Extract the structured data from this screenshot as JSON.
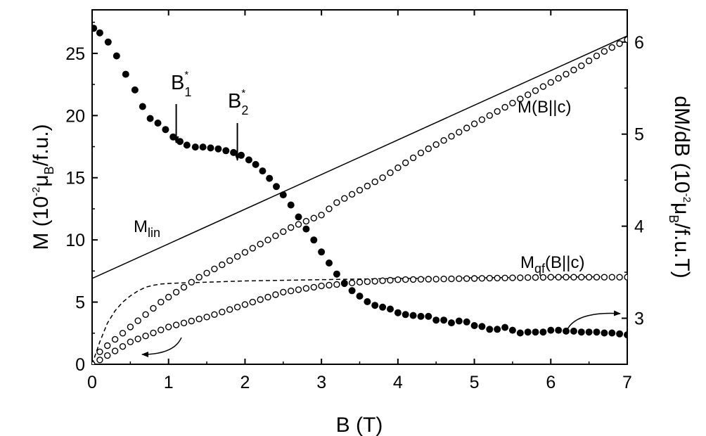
{
  "chart_data": {
    "type": "scatter",
    "x_axis": {
      "label_main": "B (T)",
      "min": 0,
      "max": 7,
      "ticks": [
        0,
        1,
        2,
        3,
        4,
        5,
        6,
        7
      ]
    },
    "y_left": {
      "label_main": "M (10",
      "label_exp": "-2",
      "label_mu": "μ",
      "label_sub": "B",
      "label_tail": "/f.u.)",
      "min": 0,
      "max": 28.5,
      "ticks": [
        0,
        5,
        10,
        15,
        20,
        25
      ]
    },
    "y_right": {
      "label_main": "dM/dB (10",
      "label_exp": "-2",
      "label_mu": "μ",
      "label_sub": "B",
      "label_tail": "/f.u.T)",
      "min": 2.5,
      "max": 6.35,
      "ticks": [
        3,
        4,
        5,
        6
      ]
    },
    "annotations": {
      "b1_main": "B",
      "b1_sub": "1",
      "b1_sup": "*",
      "b1_field": 1.1,
      "b2_main": "B",
      "b2_sub": "2",
      "b2_sup": "*",
      "b2_field": 1.9,
      "mlin_main": "M",
      "mlin_sub": "lin",
      "mbc_label": "M(B||c)",
      "mqf_main": "M",
      "mqf_sub": "qf",
      "mqf_tail": "(B||c)"
    },
    "series": [
      {
        "style": "line-solid",
        "axis": "left",
        "points": [
          [
            0,
            6.9
          ],
          [
            7,
            26.4
          ]
        ]
      },
      {
        "style": "line-dashed",
        "axis": "left",
        "points": [
          [
            0.0,
            0.0
          ],
          [
            0.1,
            1.8
          ],
          [
            0.2,
            3.3
          ],
          [
            0.3,
            4.3
          ],
          [
            0.4,
            5.0
          ],
          [
            0.5,
            5.5
          ],
          [
            0.6,
            5.9
          ],
          [
            0.7,
            6.2
          ],
          [
            0.8,
            6.35
          ],
          [
            0.9,
            6.45
          ],
          [
            1.0,
            6.5
          ],
          [
            1.2,
            6.55
          ],
          [
            1.5,
            6.6
          ],
          [
            2.0,
            6.7
          ],
          [
            3.0,
            6.8
          ],
          [
            4.0,
            6.9
          ],
          [
            5.0,
            6.95
          ],
          [
            6.0,
            7.0
          ],
          [
            7.0,
            7.05
          ]
        ]
      },
      {
        "style": "open-circles",
        "axis": "left",
        "x_start": 0.0,
        "x_end": 7.0,
        "step": 0.1,
        "points": [
          [
            0,
            0
          ],
          [
            0.1,
            1.0
          ],
          [
            0.3,
            2.0
          ],
          [
            0.5,
            3.0
          ],
          [
            0.7,
            4.0
          ],
          [
            0.9,
            5.0
          ],
          [
            1.15,
            6.0
          ],
          [
            1.4,
            7.0
          ],
          [
            1.7,
            8.0
          ],
          [
            2.0,
            9.0
          ],
          [
            2.3,
            10.0
          ],
          [
            2.6,
            11.0
          ],
          [
            3.0,
            12.0
          ],
          [
            3.2,
            13.0
          ],
          [
            3.5,
            14.0
          ],
          [
            3.8,
            15.0
          ],
          [
            4.05,
            16.0
          ],
          [
            4.3,
            17.0
          ],
          [
            4.6,
            18.0
          ],
          [
            4.9,
            19.0
          ],
          [
            5.2,
            20.0
          ],
          [
            5.5,
            21.0
          ],
          [
            5.8,
            22.0
          ],
          [
            6.1,
            23.0
          ],
          [
            6.4,
            24.0
          ],
          [
            6.65,
            25.0
          ],
          [
            7.0,
            26.1
          ]
        ]
      },
      {
        "style": "open-circles",
        "axis": "left",
        "x_start": 0.0,
        "x_end": 7.0,
        "step": 0.1,
        "points": [
          [
            0,
            0
          ],
          [
            0.2,
            0.7
          ],
          [
            0.5,
            1.8
          ],
          [
            1.0,
            3.0
          ],
          [
            1.5,
            3.8
          ],
          [
            2.0,
            4.8
          ],
          [
            2.5,
            5.8
          ],
          [
            3.0,
            6.3
          ],
          [
            3.5,
            6.6
          ],
          [
            4.0,
            6.8
          ],
          [
            5.0,
            6.9
          ],
          [
            6.0,
            7.0
          ],
          [
            7.0,
            7.0
          ]
        ]
      },
      {
        "style": "filled-circles",
        "axis": "right",
        "points": [
          [
            0.02,
            6.15
          ],
          [
            0.1,
            6.1
          ],
          [
            0.21,
            6.0
          ],
          [
            0.32,
            5.85
          ],
          [
            0.44,
            5.65
          ],
          [
            0.56,
            5.48
          ],
          [
            0.66,
            5.3
          ],
          [
            0.76,
            5.17
          ],
          [
            0.86,
            5.12
          ],
          [
            0.96,
            5.05
          ],
          [
            1.06,
            4.97
          ],
          [
            1.15,
            4.92
          ],
          [
            1.24,
            4.88
          ],
          [
            1.35,
            4.86
          ],
          [
            1.45,
            4.86
          ],
          [
            1.55,
            4.85
          ],
          [
            1.65,
            4.84
          ],
          [
            1.75,
            4.82
          ],
          [
            1.85,
            4.8
          ],
          [
            1.95,
            4.77
          ],
          [
            2.05,
            4.72
          ],
          [
            2.14,
            4.67
          ],
          [
            2.23,
            4.6
          ],
          [
            2.32,
            4.52
          ],
          [
            2.41,
            4.43
          ],
          [
            2.5,
            4.34
          ],
          [
            2.6,
            4.23
          ],
          [
            2.7,
            4.1
          ],
          [
            2.8,
            3.97
          ],
          [
            2.9,
            3.85
          ],
          [
            3.0,
            3.72
          ],
          [
            3.1,
            3.6
          ],
          [
            3.2,
            3.48
          ],
          [
            3.3,
            3.38
          ],
          [
            3.4,
            3.3
          ],
          [
            3.5,
            3.24
          ],
          [
            3.6,
            3.18
          ],
          [
            3.7,
            3.14
          ],
          [
            3.8,
            3.12
          ],
          [
            3.9,
            3.1
          ],
          [
            4.0,
            3.06
          ],
          [
            4.1,
            3.04
          ],
          [
            4.2,
            3.03
          ],
          [
            4.3,
            3.02
          ],
          [
            4.4,
            3.02
          ],
          [
            4.5,
            2.98
          ],
          [
            4.6,
            2.98
          ],
          [
            4.7,
            2.95
          ],
          [
            4.8,
            2.97
          ],
          [
            4.9,
            2.96
          ],
          [
            5.0,
            2.92
          ],
          [
            5.1,
            2.91
          ],
          [
            5.2,
            2.88
          ],
          [
            5.3,
            2.88
          ],
          [
            5.4,
            2.9
          ],
          [
            5.5,
            2.87
          ],
          [
            5.6,
            2.84
          ],
          [
            5.7,
            2.85
          ],
          [
            5.8,
            2.85
          ],
          [
            5.9,
            2.85
          ],
          [
            6.0,
            2.87
          ],
          [
            6.1,
            2.87
          ],
          [
            6.2,
            2.86
          ],
          [
            6.3,
            2.86
          ],
          [
            6.4,
            2.85
          ],
          [
            6.5,
            2.85
          ],
          [
            6.6,
            2.85
          ],
          [
            6.7,
            2.84
          ],
          [
            6.8,
            2.84
          ],
          [
            6.9,
            2.83
          ],
          [
            7.0,
            2.82
          ]
        ]
      }
    ]
  }
}
